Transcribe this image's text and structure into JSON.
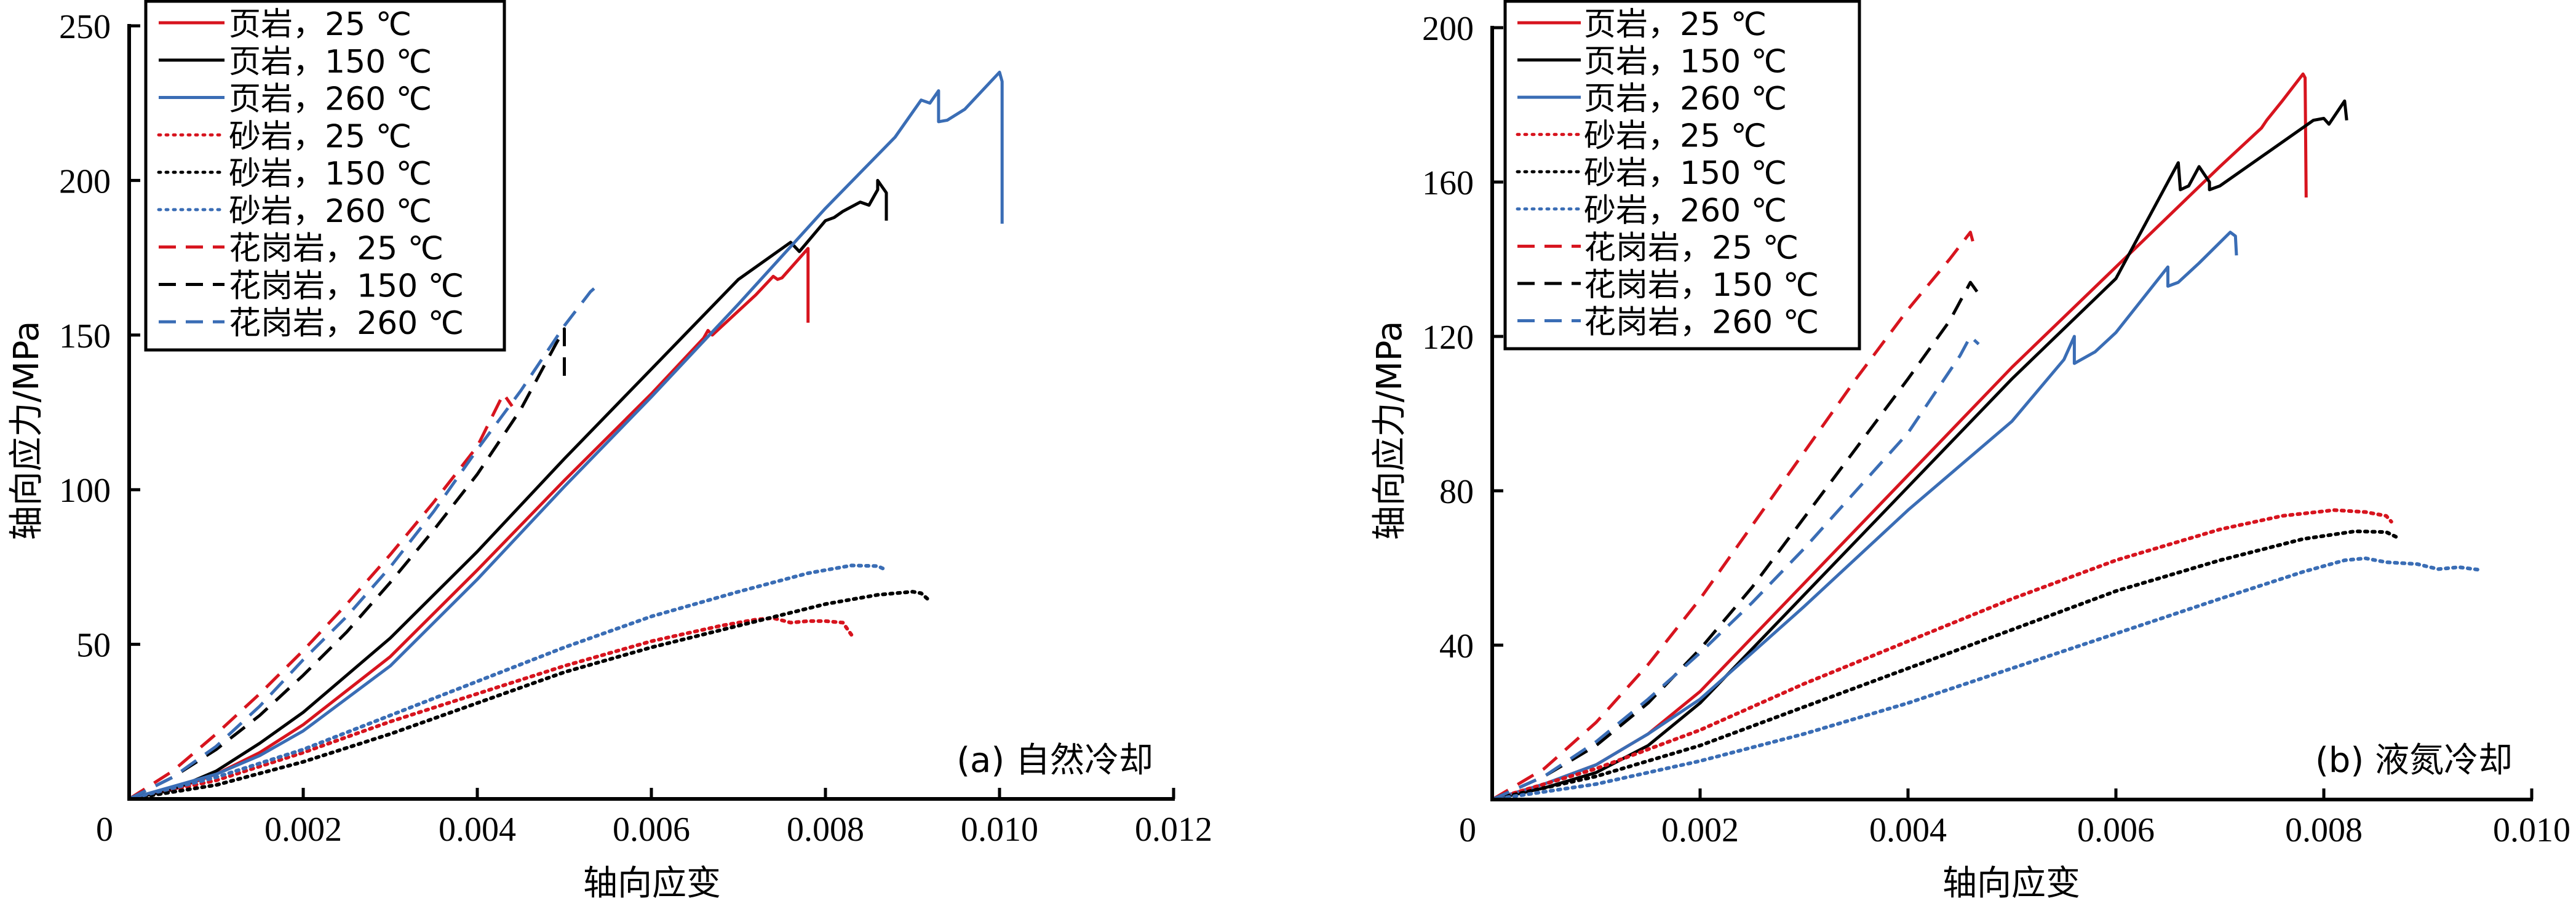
{
  "chart_data": [
    {
      "type": "line",
      "panel_label": "(a) 自然冷却",
      "xlabel": "轴向应变",
      "ylabel": "轴向应力/MPa",
      "xlim": [
        0,
        0.012
      ],
      "ylim": [
        0,
        250
      ],
      "xticks": [
        0,
        0.002,
        0.004,
        0.006,
        0.008,
        0.01,
        0.012
      ],
      "xtick_labels": [
        "0",
        "0.002",
        "0.004",
        "0.006",
        "0.008",
        "0.010",
        "0.012"
      ],
      "yticks": [
        50,
        100,
        150,
        200,
        250
      ],
      "ytick_labels": [
        "50",
        "100",
        "150",
        "200",
        "250"
      ],
      "grid": false,
      "legend_position": "top-left",
      "series": [
        {
          "name": "页岩，25 ℃",
          "color": "#d7141e",
          "style": "solid",
          "x": [
            0,
            0.0005,
            0.001,
            0.0015,
            0.002,
            0.003,
            0.004,
            0.005,
            0.006,
            0.0066,
            0.00665,
            0.0067,
            0.0072,
            0.0074,
            0.00745,
            0.0075,
            0.0078,
            0.0078
          ],
          "y": [
            0,
            3,
            8,
            15,
            24,
            46,
            74,
            103,
            131,
            149,
            151.5,
            150,
            163,
            169,
            168,
            168.5,
            178,
            154
          ]
        },
        {
          "name": "页岩，150 ℃",
          "color": "#000000",
          "style": "solid",
          "x": [
            0,
            0.0005,
            0.001,
            0.0015,
            0.002,
            0.003,
            0.004,
            0.005,
            0.006,
            0.007,
            0.0075,
            0.0076,
            0.0077,
            0.008,
            0.0081,
            0.0082,
            0.0084,
            0.0085,
            0.0086,
            0.0086,
            0.0087,
            0.0087
          ],
          "y": [
            0,
            3,
            9,
            18,
            28,
            52,
            80,
            110,
            139,
            168,
            178,
            180,
            177,
            187,
            188,
            190,
            193,
            192,
            197,
            200,
            196,
            187
          ]
        },
        {
          "name": "页岩，260 ℃",
          "color": "#3a6db5",
          "style": "solid",
          "x": [
            0,
            0.0005,
            0.001,
            0.0015,
            0.002,
            0.003,
            0.004,
            0.005,
            0.006,
            0.007,
            0.008,
            0.0088,
            0.0091,
            0.0092,
            0.0093,
            0.0093,
            0.0094,
            0.0096,
            0.01,
            0.01003,
            0.01003
          ],
          "y": [
            0,
            4,
            8,
            14,
            22,
            43,
            71,
            101,
            130,
            160,
            191,
            214,
            226,
            225,
            229,
            219,
            219.5,
            223,
            235,
            232,
            186
          ]
        },
        {
          "name": "砂岩，25 ℃",
          "color": "#d7141e",
          "style": "dotted",
          "x": [
            0,
            0.001,
            0.002,
            0.003,
            0.004,
            0.005,
            0.006,
            0.0068,
            0.0072,
            0.0074,
            0.0076,
            0.0078,
            0.008,
            0.0082,
            0.0083
          ],
          "y": [
            0,
            6,
            15,
            25,
            34,
            43,
            51,
            56,
            58,
            58.5,
            57,
            57.5,
            57.5,
            57,
            53
          ]
        },
        {
          "name": "砂岩，150 ℃",
          "color": "#000000",
          "style": "dotted",
          "x": [
            0,
            0.001,
            0.002,
            0.003,
            0.004,
            0.005,
            0.006,
            0.007,
            0.008,
            0.0086,
            0.009,
            0.0091,
            0.0092
          ],
          "y": [
            0,
            4.5,
            12,
            21,
            31,
            41,
            49,
            56,
            63,
            66,
            67,
            66.5,
            64
          ]
        },
        {
          "name": "砂岩，260 ℃",
          "color": "#3a6db5",
          "style": "dotted",
          "x": [
            0,
            0.001,
            0.002,
            0.003,
            0.004,
            0.005,
            0.006,
            0.007,
            0.0078,
            0.0083,
            0.0086,
            0.0087
          ],
          "y": [
            0,
            7,
            16,
            27,
            38,
            49,
            59,
            67,
            73,
            75.5,
            75.3,
            74
          ]
        },
        {
          "name": "花岗岩，25 ℃",
          "color": "#d7141e",
          "style": "dashed",
          "x": [
            0,
            0.0005,
            0.001,
            0.0015,
            0.002,
            0.0025,
            0.003,
            0.0035,
            0.004,
            0.0043,
            0.0044
          ],
          "y": [
            0,
            9,
            21,
            34,
            48,
            63,
            79,
            96,
            114,
            131,
            127
          ]
        },
        {
          "name": "花岗岩，150 ℃",
          "color": "#000000",
          "style": "dashed",
          "x": [
            0,
            0.0005,
            0.001,
            0.0015,
            0.002,
            0.0025,
            0.003,
            0.0035,
            0.004,
            0.0045,
            0.0049,
            0.005,
            0.005
          ],
          "y": [
            0,
            7,
            16,
            27,
            40,
            54,
            70,
            87,
            105,
            126,
            147,
            152,
            134
          ]
        },
        {
          "name": "花岗岩，260 ℃",
          "color": "#3a6db5",
          "style": "dashed",
          "x": [
            0,
            0.0005,
            0.001,
            0.0015,
            0.002,
            0.0025,
            0.003,
            0.0035,
            0.004,
            0.0045,
            0.005,
            0.0053,
            0.0054
          ],
          "y": [
            0,
            7,
            17,
            30,
            45,
            59,
            75,
            93,
            113,
            132,
            153,
            164,
            166.5
          ]
        }
      ]
    },
    {
      "type": "line",
      "panel_label": "(b) 液氮冷却",
      "xlabel": "轴向应变",
      "ylabel": "轴向应力/MPa",
      "xlim": [
        0,
        0.01
      ],
      "ylim": [
        0,
        200
      ],
      "xticks": [
        0,
        0.002,
        0.004,
        0.006,
        0.008,
        0.01
      ],
      "xtick_labels": [
        "0",
        "0.002",
        "0.004",
        "0.006",
        "0.008",
        "0.010"
      ],
      "yticks": [
        40,
        80,
        120,
        160,
        200
      ],
      "ytick_labels": [
        "40",
        "80",
        "120",
        "160",
        "200"
      ],
      "grid": false,
      "legend_position": "top-left",
      "series": [
        {
          "name": "页岩，25 ℃",
          "color": "#d7141e",
          "style": "solid",
          "x": [
            0,
            0.0005,
            0.001,
            0.0015,
            0.002,
            0.003,
            0.004,
            0.005,
            0.006,
            0.007,
            0.0074,
            0.00745,
            0.0076,
            0.0078,
            0.00782,
            0.00783
          ],
          "y": [
            0,
            4,
            9,
            17,
            28,
            56,
            84,
            112,
            138,
            164,
            174,
            176,
            181,
            188,
            187,
            156
          ]
        },
        {
          "name": "页岩，150 ℃",
          "color": "#000000",
          "style": "solid",
          "x": [
            0,
            0.0005,
            0.001,
            0.0015,
            0.002,
            0.003,
            0.004,
            0.005,
            0.006,
            0.0066,
            0.00662,
            0.0067,
            0.0068,
            0.0069,
            0.0069,
            0.007,
            0.0079,
            0.008,
            0.00805,
            0.0082,
            0.00822
          ],
          "y": [
            0,
            3,
            7,
            14,
            25,
            53,
            81,
            109,
            135,
            165,
            158,
            159,
            164,
            160,
            158,
            159,
            176,
            176.5,
            175,
            181,
            176
          ]
        },
        {
          "name": "页岩，260 ℃",
          "color": "#3a6db5",
          "style": "solid",
          "x": [
            0,
            0.0005,
            0.001,
            0.0015,
            0.002,
            0.003,
            0.004,
            0.005,
            0.0055,
            0.0056,
            0.0056,
            0.0058,
            0.006,
            0.0065,
            0.0065,
            0.0066,
            0.0068,
            0.0071,
            0.00715,
            0.00716
          ],
          "y": [
            0,
            4,
            9,
            17,
            26,
            50,
            75,
            98,
            114,
            120,
            113,
            116,
            121,
            138,
            133,
            134,
            139,
            147,
            146,
            141
          ]
        },
        {
          "name": "砂岩，25 ℃",
          "color": "#d7141e",
          "style": "dotted",
          "x": [
            0,
            0.001,
            0.002,
            0.003,
            0.004,
            0.005,
            0.006,
            0.007,
            0.0076,
            0.0081,
            0.0084,
            0.0086,
            0.00865
          ],
          "y": [
            0,
            8,
            18,
            30,
            41,
            52,
            62,
            70,
            73.5,
            75,
            74.5,
            73.5,
            72
          ]
        },
        {
          "name": "砂岩，150 ℃",
          "color": "#000000",
          "style": "dotted",
          "x": [
            0,
            0.001,
            0.002,
            0.003,
            0.004,
            0.005,
            0.006,
            0.007,
            0.0078,
            0.0083,
            0.0086,
            0.0087
          ],
          "y": [
            0,
            6,
            14,
            24,
            34,
            44,
            54,
            62,
            67.5,
            69.5,
            69.3,
            68
          ]
        },
        {
          "name": "砂岩，260 ℃",
          "color": "#3a6db5",
          "style": "dotted",
          "x": [
            0,
            0.001,
            0.002,
            0.003,
            0.004,
            0.005,
            0.006,
            0.007,
            0.0078,
            0.0082,
            0.0084,
            0.0086,
            0.0089,
            0.0091,
            0.0093,
            0.0095
          ],
          "y": [
            0,
            4,
            10,
            17,
            25,
            34,
            43,
            52,
            59,
            62,
            62.5,
            61.5,
            61,
            59.7,
            60.2,
            59.5
          ]
        },
        {
          "name": "花岗岩，25 ℃",
          "color": "#d7141e",
          "style": "dashed",
          "x": [
            0,
            0.0005,
            0.001,
            0.0015,
            0.002,
            0.0025,
            0.003,
            0.0035,
            0.004,
            0.0044,
            0.0046,
            0.00465
          ],
          "y": [
            0,
            8,
            20,
            35,
            52,
            71,
            90,
            109,
            127,
            140,
            147,
            142
          ]
        },
        {
          "name": "花岗岩，150 ℃",
          "color": "#000000",
          "style": "dashed",
          "x": [
            0,
            0.0005,
            0.001,
            0.0015,
            0.002,
            0.0025,
            0.003,
            0.0035,
            0.004,
            0.0044,
            0.0046,
            0.00468
          ],
          "y": [
            0,
            6,
            14,
            25,
            39,
            55,
            73,
            91,
            109,
            124,
            134,
            131
          ]
        },
        {
          "name": "花岗岩，260 ℃",
          "color": "#3a6db5",
          "style": "dashed",
          "x": [
            0,
            0.0005,
            0.001,
            0.0015,
            0.002,
            0.0025,
            0.003,
            0.0035,
            0.004,
            0.0045,
            0.0046,
            0.00468
          ],
          "y": [
            0,
            6,
            15,
            26,
            38,
            51,
            65,
            80,
            95,
            115,
            120,
            118
          ]
        }
      ]
    }
  ]
}
